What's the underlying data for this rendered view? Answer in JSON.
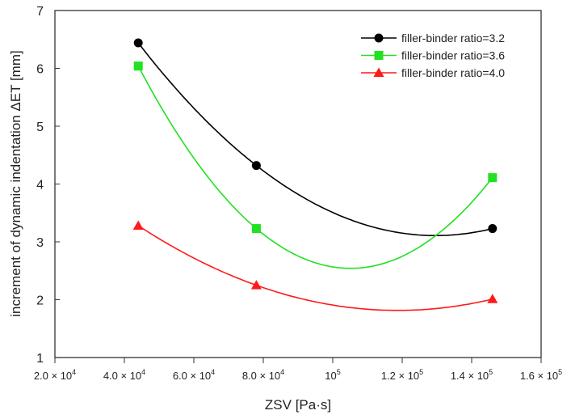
{
  "chart_data": {
    "type": "line",
    "title": "",
    "xlabel": "ZSV [Pa·s]",
    "ylabel": "increment of dynamic indentation  ΔET [mm]",
    "xlim": [
      20000,
      160000
    ],
    "ylim": [
      1,
      7
    ],
    "xticks": [
      {
        "value": 20000,
        "mant": "2.0 × 10",
        "exp": "4"
      },
      {
        "value": 40000,
        "mant": "4.0 × 10",
        "exp": "4"
      },
      {
        "value": 60000,
        "mant": "6.0 × 10",
        "exp": "4"
      },
      {
        "value": 80000,
        "mant": "8.0 × 10",
        "exp": "4"
      },
      {
        "value": 100000,
        "mant": "10",
        "exp": "5"
      },
      {
        "value": 120000,
        "mant": "1.2 × 10",
        "exp": "5"
      },
      {
        "value": 140000,
        "mant": "1.4 × 10",
        "exp": "5"
      },
      {
        "value": 160000,
        "mant": "1.6 × 10",
        "exp": "5"
      }
    ],
    "yticks": [
      "1",
      "2",
      "3",
      "4",
      "5",
      "6",
      "7"
    ],
    "grid": false,
    "legend_position": "top-right",
    "x": [
      44000,
      78000,
      146000
    ],
    "series": [
      {
        "name": "filler-binder ratio=3.2",
        "color": "#000000",
        "marker": "circle",
        "values": [
          6.44,
          4.32,
          3.23
        ]
      },
      {
        "name": "filler-binder ratio=3.6",
        "color": "#22e022",
        "marker": "square",
        "values": [
          6.04,
          3.23,
          4.11
        ]
      },
      {
        "name": "filler-binder ratio=4.0",
        "color": "#ff1a1a",
        "marker": "triangle",
        "values": [
          3.28,
          2.25,
          2.01
        ]
      }
    ]
  }
}
